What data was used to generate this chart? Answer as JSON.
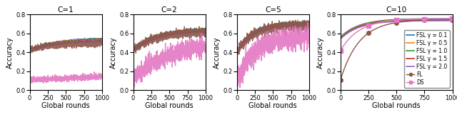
{
  "titles": [
    "C=1",
    "C=2",
    "C=5",
    "C=10"
  ],
  "xlabel": "Global rounds",
  "ylabel": "Accuracy",
  "ylim": [
    0.0,
    0.8
  ],
  "xlim": [
    0,
    1000
  ],
  "xticks": [
    0,
    250,
    500,
    750,
    1000
  ],
  "yticks": [
    0.0,
    0.2,
    0.4,
    0.6,
    0.8
  ],
  "num_rounds": 1000,
  "series": {
    "FSL_01": {
      "label": "FSL γ = 0.1",
      "color": "#1f77b4",
      "lw": 1.2,
      "marker": "none",
      "ms": 0
    },
    "FSL_05": {
      "label": "FSL γ = 0.5",
      "color": "#ff7f0e",
      "lw": 1.2,
      "marker": "none",
      "ms": 0
    },
    "FSL_10": {
      "label": "FSL γ = 1.0",
      "color": "#2ca02c",
      "lw": 1.2,
      "marker": "none",
      "ms": 0
    },
    "FSL_15": {
      "label": "FSL γ = 1.5",
      "color": "#d62728",
      "lw": 1.2,
      "marker": "none",
      "ms": 0
    },
    "FSL_20": {
      "label": "FSL γ = 2.0",
      "color": "#9467bd",
      "lw": 1.2,
      "marker": "none",
      "ms": 0
    },
    "FL": {
      "label": "FL",
      "color": "#8c564b",
      "lw": 1.0,
      "marker": "o",
      "ms": 3
    },
    "DS": {
      "label": "DS",
      "color": "#e377c2",
      "lw": 1.0,
      "marker": "s",
      "ms": 3
    }
  },
  "final_values": {
    "C1": {
      "FSL_01": 0.548,
      "FSL_05": 0.543,
      "FSL_10": 0.538,
      "FSL_15": 0.534,
      "FSL_20": 0.53,
      "FL": 0.5,
      "DS": 0.165
    },
    "C2": {
      "FSL_01": 0.65,
      "FSL_05": 0.647,
      "FSL_10": 0.643,
      "FSL_15": 0.638,
      "FSL_20": 0.632,
      "FL": 0.62,
      "DS": 0.505
    },
    "C5": {
      "FSL_01": 0.715,
      "FSL_05": 0.712,
      "FSL_10": 0.708,
      "FSL_15": 0.703,
      "FSL_20": 0.697,
      "FL": 0.685,
      "DS": 0.58
    },
    "C10": {
      "FSL_01": 0.755,
      "FSL_05": 0.75,
      "FSL_10": 0.745,
      "FSL_15": 0.74,
      "FSL_20": 0.735,
      "FL": 0.745,
      "DS": 0.755
    }
  },
  "start_values": {
    "C1": {
      "FSL_01": 0.428,
      "FSL_05": 0.424,
      "FSL_10": 0.421,
      "FSL_15": 0.418,
      "FSL_20": 0.415,
      "FL": 0.425,
      "DS": 0.105
    },
    "C2": {
      "FSL_01": 0.428,
      "FSL_05": 0.424,
      "FSL_10": 0.421,
      "FSL_15": 0.418,
      "FSL_20": 0.415,
      "FL": 0.42,
      "DS": 0.1
    },
    "C5": {
      "FSL_01": 0.405,
      "FSL_05": 0.402,
      "FSL_10": 0.399,
      "FSL_15": 0.396,
      "FSL_20": 0.393,
      "FL": 0.4,
      "DS": 0.1
    },
    "C10": {
      "FSL_01": 0.56,
      "FSL_05": 0.555,
      "FSL_10": 0.55,
      "FSL_15": 0.545,
      "FSL_20": 0.54,
      "FL": 0.105,
      "DS": 0.415
    }
  },
  "noise_scale": {
    "C1": {
      "FSL_01": 0.004,
      "FSL_05": 0.004,
      "FSL_10": 0.004,
      "FSL_15": 0.004,
      "FSL_20": 0.004,
      "FL": 0.016,
      "DS": 0.015
    },
    "C2": {
      "FSL_01": 0.006,
      "FSL_05": 0.006,
      "FSL_10": 0.006,
      "FSL_15": 0.006,
      "FSL_20": 0.006,
      "FL": 0.022,
      "DS": 0.045
    },
    "C5": {
      "FSL_01": 0.008,
      "FSL_05": 0.008,
      "FSL_10": 0.008,
      "FSL_15": 0.008,
      "FSL_20": 0.008,
      "FL": 0.025,
      "DS": 0.055
    },
    "C10": {
      "FSL_01": 0.0,
      "FSL_05": 0.0,
      "FSL_10": 0.0,
      "FSL_15": 0.0,
      "FSL_20": 0.0,
      "FL": 0.0,
      "DS": 0.0
    }
  },
  "concavity": {
    "C1": {
      "FSL_01": 0.28,
      "FSL_05": 0.28,
      "FSL_10": 0.28,
      "FSL_15": 0.28,
      "FSL_20": 0.28,
      "FL": 0.28,
      "DS": 0.1
    },
    "C2": {
      "FSL_01": 0.32,
      "FSL_05": 0.32,
      "FSL_10": 0.32,
      "FSL_15": 0.32,
      "FSL_20": 0.32,
      "FL": 0.32,
      "DS": 0.22
    },
    "C5": {
      "FSL_01": 0.45,
      "FSL_05": 0.45,
      "FSL_10": 0.45,
      "FSL_15": 0.45,
      "FSL_20": 0.45,
      "FL": 0.45,
      "DS": 0.4
    },
    "C10": {
      "FSL_01": 0.6,
      "FSL_05": 0.6,
      "FSL_10": 0.6,
      "FSL_15": 0.6,
      "FSL_20": 0.6,
      "FL": 0.6,
      "DS": 0.6
    }
  },
  "marker_rounds": [
    0,
    250,
    500,
    750,
    1000
  ],
  "legend_inside_last": true
}
